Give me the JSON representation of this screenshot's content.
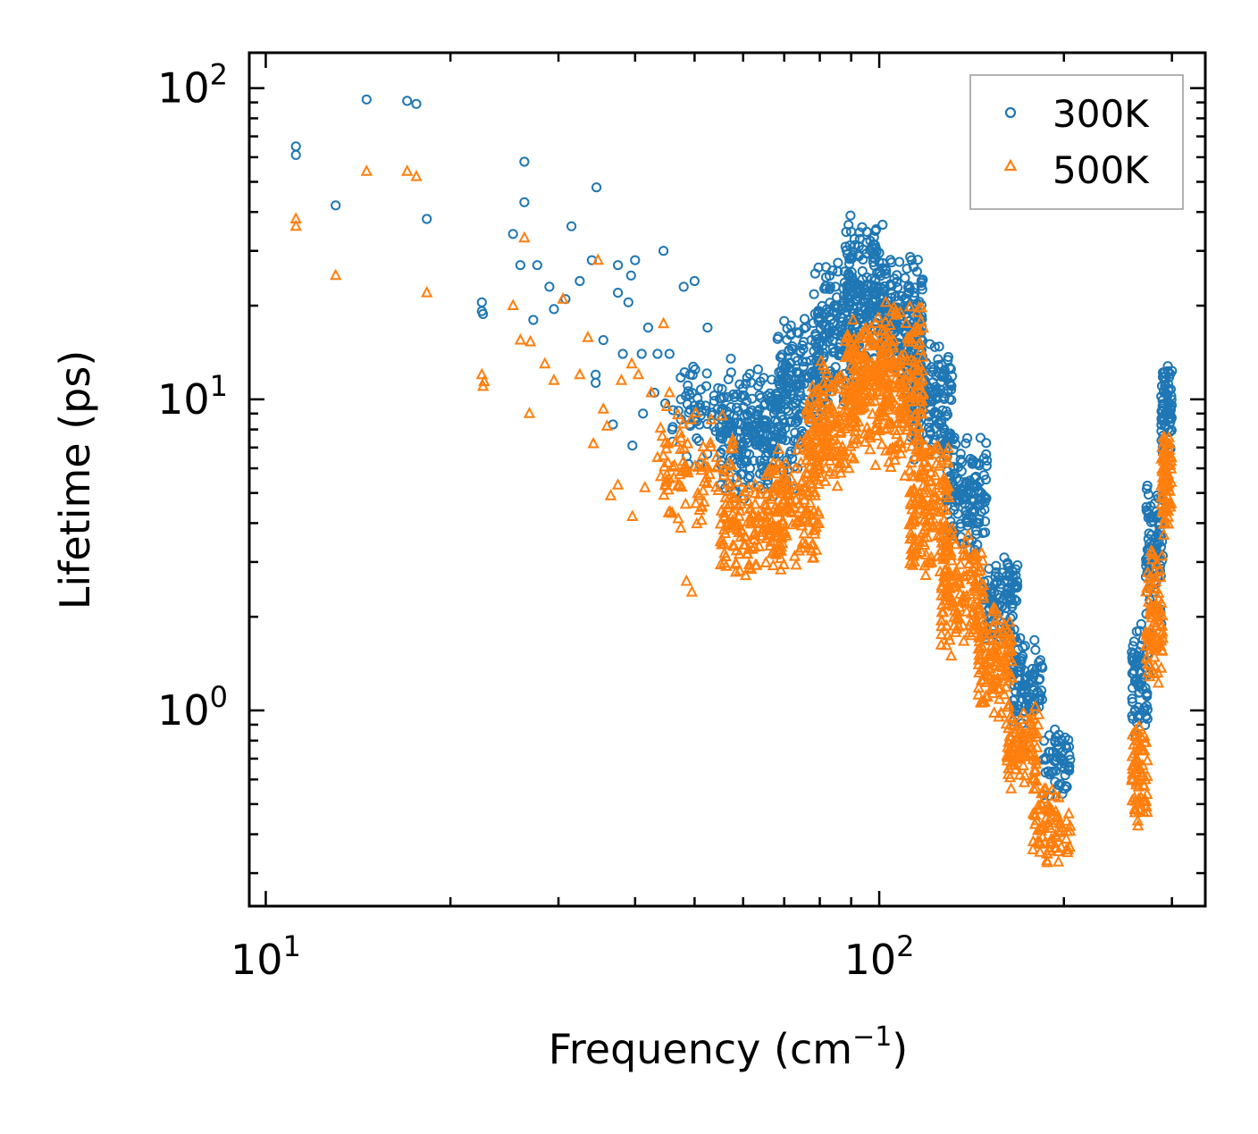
{
  "chart_data": {
    "type": "scatter",
    "title": "",
    "xlabel": "Frequency (cm",
    "xlabel_sup": "−1",
    "xlabel_close": ")",
    "ylabel": "Lifetime (ps)",
    "xscale": "log",
    "yscale": "log",
    "xlim": [
      9.4,
      340
    ],
    "ylim": [
      0.235,
      130
    ],
    "x_ticks": [
      {
        "value": 10,
        "base": "10",
        "exp": "1"
      },
      {
        "value": 100,
        "base": "10",
        "exp": "2"
      }
    ],
    "y_ticks": [
      {
        "value": 1,
        "base": "10",
        "exp": "0"
      },
      {
        "value": 10,
        "base": "10",
        "exp": "1"
      },
      {
        "value": 100,
        "base": "10",
        "exp": "2"
      }
    ],
    "legend_position": "top-right",
    "series": [
      {
        "name": "300K",
        "marker": "circle",
        "color": "#1f77b4",
        "points": [
          [
            11.2,
            65
          ],
          [
            11.2,
            61
          ],
          [
            13.0,
            42
          ],
          [
            14.6,
            92
          ],
          [
            17.0,
            91
          ],
          [
            17.6,
            89
          ],
          [
            18.3,
            38
          ],
          [
            22.5,
            20.5
          ],
          [
            22.5,
            19.2
          ],
          [
            22.6,
            18.8
          ],
          [
            25.3,
            34
          ],
          [
            26.0,
            27
          ],
          [
            26.4,
            58
          ],
          [
            26.4,
            43
          ],
          [
            27.3,
            18
          ],
          [
            27.7,
            27
          ],
          [
            29.0,
            23
          ],
          [
            29.5,
            19.5
          ],
          [
            30.8,
            21
          ],
          [
            31.5,
            36
          ],
          [
            32.5,
            24
          ],
          [
            34.0,
            28
          ],
          [
            34.5,
            12
          ],
          [
            34.5,
            11.3
          ],
          [
            34.6,
            48
          ],
          [
            35.5,
            15.5
          ],
          [
            36.8,
            8.3
          ],
          [
            37.5,
            22
          ],
          [
            37.5,
            27
          ],
          [
            38.2,
            14
          ],
          [
            39.0,
            20.5
          ],
          [
            39.4,
            25
          ],
          [
            39.6,
            7.1
          ],
          [
            40.0,
            28
          ],
          [
            41.0,
            14
          ],
          [
            41.2,
            9
          ],
          [
            42.0,
            17
          ],
          [
            43.0,
            10.5
          ],
          [
            43.5,
            14
          ],
          [
            44.5,
            30
          ],
          [
            44.8,
            9.7
          ],
          [
            45.5,
            14
          ],
          [
            46.0,
            8
          ],
          [
            47.5,
            10
          ],
          [
            48.0,
            23
          ],
          [
            50.0,
            24
          ],
          [
            51.0,
            9.6
          ],
          [
            52.5,
            17
          ]
        ],
        "clusters": [
          {
            "f": [
              46,
              60
            ],
            "lo": 5.5,
            "hi": 15,
            "n": 90
          },
          {
            "f": [
              55,
              68
            ],
            "lo": 4.5,
            "hi": 12,
            "n": 110
          },
          {
            "f": [
              60,
              75
            ],
            "lo": 5.0,
            "hi": 14,
            "n": 130
          },
          {
            "f": [
              68,
              82
            ],
            "lo": 7,
            "hi": 20,
            "n": 130
          },
          {
            "f": [
              78,
              92
            ],
            "lo": 9,
            "hi": 30,
            "n": 160
          },
          {
            "f": [
              88,
              102
            ],
            "lo": 12,
            "hi": 40,
            "n": 180
          },
          {
            "f": [
              100,
              118
            ],
            "lo": 10,
            "hi": 30,
            "n": 180
          },
          {
            "f": [
              112,
              132
            ],
            "lo": 6,
            "hi": 16,
            "n": 170
          },
          {
            "f": [
              128,
              150
            ],
            "lo": 3,
            "hi": 8,
            "n": 140
          },
          {
            "f": [
              148,
              168
            ],
            "lo": 1.6,
            "hi": 3.2,
            "n": 110
          },
          {
            "f": [
              165,
              185
            ],
            "lo": 0.85,
            "hi": 1.8,
            "n": 90
          },
          {
            "f": [
              185,
              205
            ],
            "lo": 0.5,
            "hi": 0.95,
            "n": 60
          },
          {
            "f": [
              258,
              275
            ],
            "lo": 0.75,
            "hi": 2.0,
            "n": 70
          },
          {
            "f": [
              272,
              290
            ],
            "lo": 1.8,
            "hi": 6.0,
            "n": 90
          },
          {
            "f": [
              288,
              300
            ],
            "lo": 6.0,
            "hi": 14.5,
            "n": 80
          }
        ]
      },
      {
        "name": "500K",
        "marker": "triangle",
        "color": "#ff7f0e",
        "points": [
          [
            11.2,
            38
          ],
          [
            11.2,
            36
          ],
          [
            13.0,
            25
          ],
          [
            14.6,
            54
          ],
          [
            17.0,
            54
          ],
          [
            17.6,
            52
          ],
          [
            18.3,
            22
          ],
          [
            22.5,
            12
          ],
          [
            22.6,
            11
          ],
          [
            22.7,
            11.4
          ],
          [
            25.3,
            20
          ],
          [
            26.0,
            15.5
          ],
          [
            26.4,
            33
          ],
          [
            27.0,
            15.3
          ],
          [
            26.9,
            9
          ],
          [
            28.5,
            13
          ],
          [
            29.5,
            11.5
          ],
          [
            30.5,
            21
          ],
          [
            32.5,
            12
          ],
          [
            33.5,
            15.8
          ],
          [
            34.2,
            7.2
          ],
          [
            34.8,
            28
          ],
          [
            35.5,
            9.3
          ],
          [
            36.0,
            8.2
          ],
          [
            36.5,
            4.9
          ],
          [
            37.5,
            5.3
          ],
          [
            38.0,
            11.5
          ],
          [
            39.5,
            13
          ],
          [
            39.6,
            4.2
          ],
          [
            40.5,
            12
          ],
          [
            41.5,
            5.2
          ],
          [
            42.5,
            10.5
          ],
          [
            43.5,
            6.5
          ],
          [
            44.5,
            17.5
          ],
          [
            45.5,
            10.5
          ],
          [
            46.0,
            4.3
          ],
          [
            47.5,
            7.5
          ],
          [
            48.5,
            2.6
          ],
          [
            49.5,
            2.4
          ]
        ],
        "clusters": [
          {
            "f": [
              44,
              58
            ],
            "lo": 3.5,
            "hi": 10,
            "n": 90
          },
          {
            "f": [
              55,
              70
            ],
            "lo": 2.6,
            "hi": 5.5,
            "n": 140
          },
          {
            "f": [
              65,
              80
            ],
            "lo": 2.9,
            "hi": 7.5,
            "n": 150
          },
          {
            "f": [
              76,
              92
            ],
            "lo": 5.0,
            "hi": 14,
            "n": 170
          },
          {
            "f": [
              88,
              104
            ],
            "lo": 6.0,
            "hi": 20,
            "n": 190
          },
          {
            "f": [
              100,
              118
            ],
            "lo": 5.5,
            "hi": 22,
            "n": 190
          },
          {
            "f": [
              112,
              130
            ],
            "lo": 2.5,
            "hi": 8,
            "n": 170
          },
          {
            "f": [
              126,
              148
            ],
            "lo": 1.4,
            "hi": 4,
            "n": 150
          },
          {
            "f": [
              145,
              165
            ],
            "lo": 0.9,
            "hi": 2.3,
            "n": 120
          },
          {
            "f": [
              160,
              182
            ],
            "lo": 0.52,
            "hi": 1.1,
            "n": 100
          },
          {
            "f": [
              178,
              205
            ],
            "lo": 0.3,
            "hi": 0.6,
            "n": 80
          },
          {
            "f": [
              258,
              275
            ],
            "lo": 0.4,
            "hi": 1.0,
            "n": 70
          },
          {
            "f": [
              272,
              290
            ],
            "lo": 1.0,
            "hi": 3.5,
            "n": 90
          },
          {
            "f": [
              288,
              300
            ],
            "lo": 3.5,
            "hi": 8.5,
            "n": 80
          }
        ]
      }
    ]
  }
}
